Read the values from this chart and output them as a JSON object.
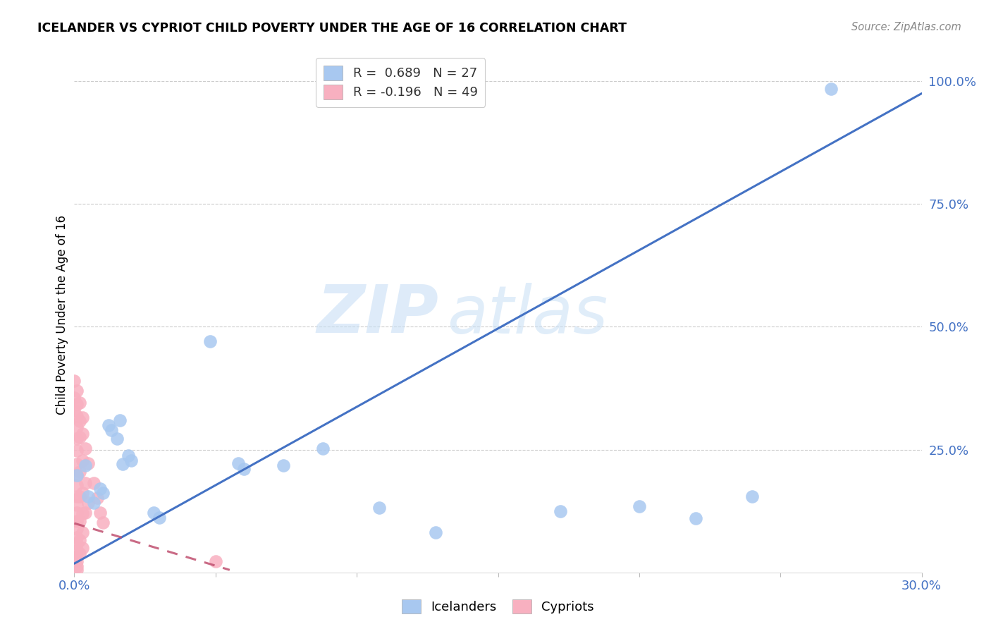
{
  "title": "ICELANDER VS CYPRIOT CHILD POVERTY UNDER THE AGE OF 16 CORRELATION CHART",
  "source": "Source: ZipAtlas.com",
  "ylabel": "Child Poverty Under the Age of 16",
  "watermark_zip": "ZIP",
  "watermark_atlas": "atlas",
  "xmin": 0.0,
  "xmax": 0.3,
  "ymin": 0.0,
  "ymax": 1.05,
  "icelander_color": "#a8c8f0",
  "cypriot_color": "#f8b0c0",
  "icelander_line_color": "#4472c4",
  "cypriot_line_color": "#c05070",
  "icelander_R": 0.689,
  "icelander_N": 27,
  "cypriot_R": -0.196,
  "cypriot_N": 49,
  "ice_line_x0": 0.0,
  "ice_line_y0": 0.018,
  "ice_line_x1": 0.3,
  "ice_line_y1": 0.975,
  "cyp_line_x0": 0.0,
  "cyp_line_y0": 0.1,
  "cyp_line_x1": 0.055,
  "cyp_line_y1": 0.005,
  "icelander_scatter": [
    [
      0.001,
      0.198
    ],
    [
      0.004,
      0.218
    ],
    [
      0.005,
      0.155
    ],
    [
      0.007,
      0.142
    ],
    [
      0.009,
      0.17
    ],
    [
      0.01,
      0.162
    ],
    [
      0.012,
      0.3
    ],
    [
      0.013,
      0.29
    ],
    [
      0.015,
      0.272
    ],
    [
      0.016,
      0.31
    ],
    [
      0.017,
      0.22
    ],
    [
      0.019,
      0.238
    ],
    [
      0.02,
      0.228
    ],
    [
      0.028,
      0.122
    ],
    [
      0.03,
      0.112
    ],
    [
      0.048,
      0.47
    ],
    [
      0.058,
      0.222
    ],
    [
      0.06,
      0.21
    ],
    [
      0.074,
      0.218
    ],
    [
      0.088,
      0.252
    ],
    [
      0.108,
      0.132
    ],
    [
      0.128,
      0.082
    ],
    [
      0.172,
      0.125
    ],
    [
      0.2,
      0.135
    ],
    [
      0.22,
      0.11
    ],
    [
      0.24,
      0.155
    ],
    [
      0.268,
      0.985
    ]
  ],
  "cypriot_scatter": [
    [
      0.0,
      0.39
    ],
    [
      0.0,
      0.355
    ],
    [
      0.0,
      0.33
    ],
    [
      0.001,
      0.37
    ],
    [
      0.001,
      0.342
    ],
    [
      0.001,
      0.318
    ],
    [
      0.001,
      0.295
    ],
    [
      0.001,
      0.272
    ],
    [
      0.001,
      0.248
    ],
    [
      0.001,
      0.22
    ],
    [
      0.001,
      0.198
    ],
    [
      0.001,
      0.178
    ],
    [
      0.001,
      0.155
    ],
    [
      0.001,
      0.138
    ],
    [
      0.001,
      0.122
    ],
    [
      0.001,
      0.105
    ],
    [
      0.001,
      0.088
    ],
    [
      0.001,
      0.072
    ],
    [
      0.001,
      0.058
    ],
    [
      0.001,
      0.045
    ],
    [
      0.001,
      0.032
    ],
    [
      0.001,
      0.022
    ],
    [
      0.001,
      0.012
    ],
    [
      0.001,
      0.005
    ],
    [
      0.002,
      0.345
    ],
    [
      0.002,
      0.308
    ],
    [
      0.002,
      0.275
    ],
    [
      0.002,
      0.205
    ],
    [
      0.002,
      0.155
    ],
    [
      0.002,
      0.105
    ],
    [
      0.002,
      0.065
    ],
    [
      0.002,
      0.038
    ],
    [
      0.003,
      0.315
    ],
    [
      0.003,
      0.282
    ],
    [
      0.003,
      0.228
    ],
    [
      0.003,
      0.162
    ],
    [
      0.003,
      0.12
    ],
    [
      0.003,
      0.082
    ],
    [
      0.003,
      0.05
    ],
    [
      0.004,
      0.252
    ],
    [
      0.004,
      0.182
    ],
    [
      0.004,
      0.122
    ],
    [
      0.005,
      0.222
    ],
    [
      0.005,
      0.142
    ],
    [
      0.007,
      0.182
    ],
    [
      0.008,
      0.152
    ],
    [
      0.009,
      0.122
    ],
    [
      0.01,
      0.102
    ],
    [
      0.05,
      0.022
    ]
  ]
}
